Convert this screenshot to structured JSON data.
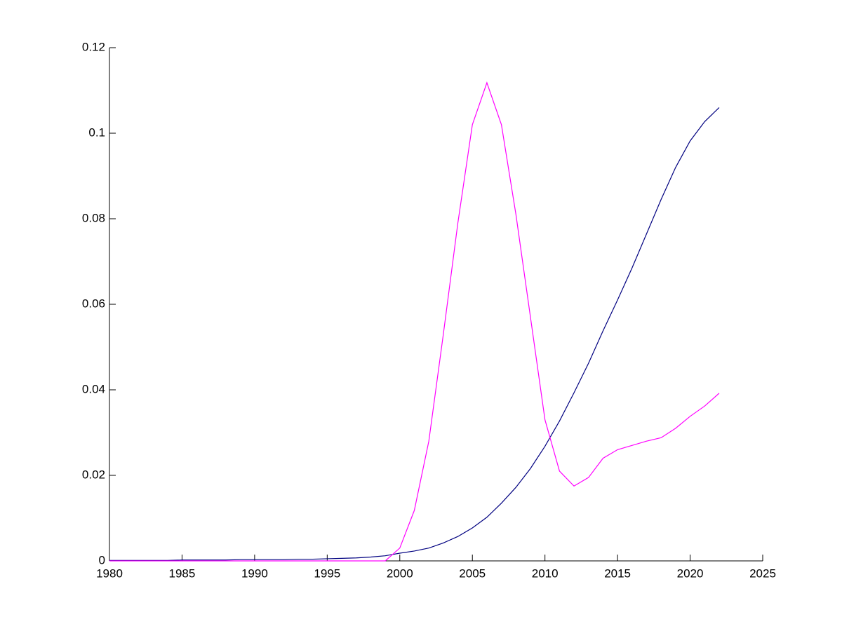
{
  "chart_data": {
    "type": "line",
    "x": [
      1980,
      1981,
      1982,
      1983,
      1984,
      1985,
      1986,
      1987,
      1988,
      1989,
      1990,
      1991,
      1992,
      1993,
      1994,
      1995,
      1996,
      1997,
      1998,
      1999,
      2000,
      2001,
      2002,
      2003,
      2004,
      2005,
      2006,
      2007,
      2008,
      2009,
      2010,
      2011,
      2012,
      2013,
      2014,
      2015,
      2016,
      2017,
      2018,
      2019,
      2020,
      2021,
      2022
    ],
    "series": [
      {
        "color": "#000080",
        "values": [
          0.0001,
          0.0001,
          0.0001,
          0.0001,
          0.0001,
          0.0002,
          0.0002,
          0.0002,
          0.0002,
          0.0003,
          0.0003,
          0.0003,
          0.0003,
          0.0004,
          0.0004,
          0.0005,
          0.0006,
          0.0007,
          0.0009,
          0.0012,
          0.0018,
          0.0023,
          0.003,
          0.0042,
          0.0057,
          0.0077,
          0.0102,
          0.0135,
          0.0172,
          0.0216,
          0.0268,
          0.0327,
          0.0393,
          0.0462,
          0.0538,
          0.061,
          0.0685,
          0.0765,
          0.0845,
          0.092,
          0.0982,
          0.1027,
          0.106
        ]
      },
      {
        "color": "#ff00ff",
        "values": [
          0,
          0,
          0,
          0,
          0,
          0,
          0,
          0,
          0,
          0,
          0,
          0,
          0,
          0,
          0,
          0,
          0,
          0,
          0,
          0,
          0.003,
          0.0118,
          0.028,
          0.053,
          0.079,
          0.102,
          0.1118,
          0.102,
          0.081,
          0.057,
          0.033,
          0.021,
          0.0175,
          0.0195,
          0.024,
          0.026,
          0.027,
          0.028,
          0.0288,
          0.031,
          0.0338,
          0.0362,
          0.0392
        ]
      }
    ],
    "xlim": [
      1980,
      2025
    ],
    "xticks": [
      1980,
      1985,
      1990,
      1995,
      2000,
      2005,
      2010,
      2015,
      2020,
      2025
    ],
    "ylim": [
      0,
      0.12
    ],
    "yticks": [
      0,
      0.02,
      0.04,
      0.06,
      0.08,
      0.1,
      0.12
    ]
  }
}
